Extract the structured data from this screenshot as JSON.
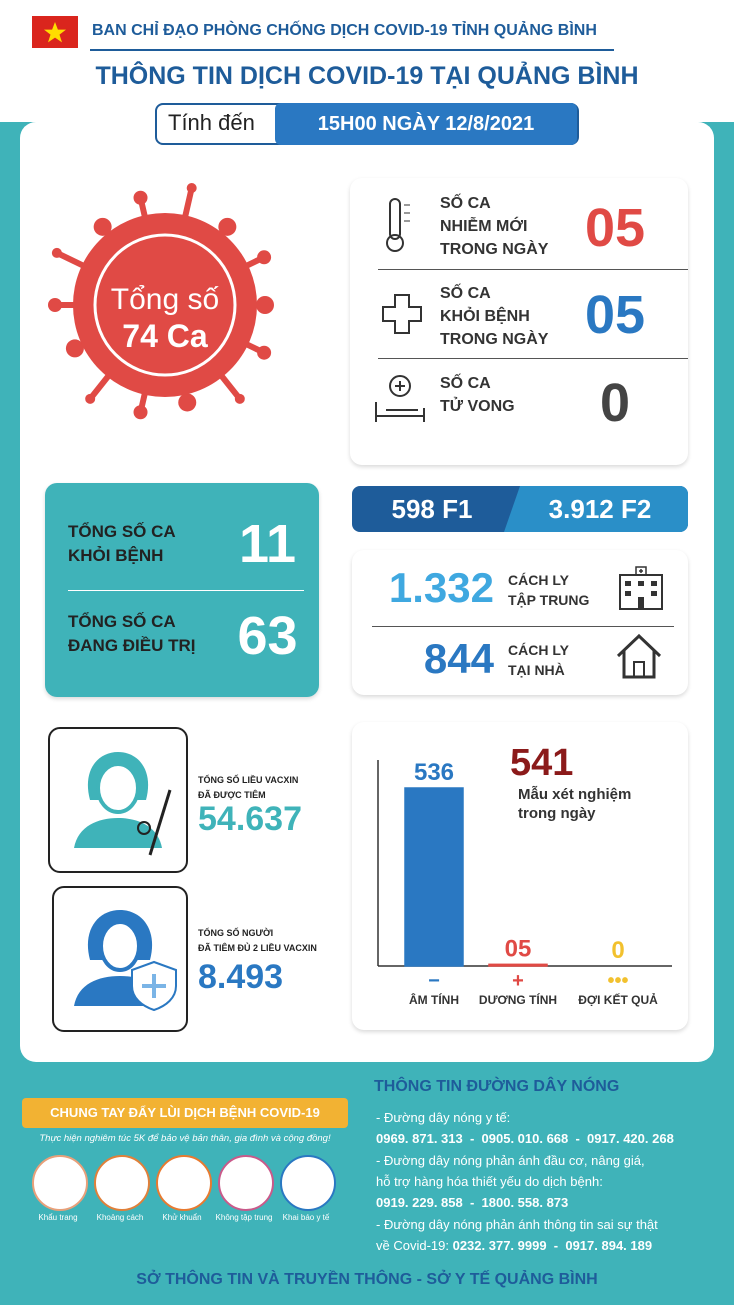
{
  "header": {
    "org": "BAN CHỈ ĐẠO PHÒNG CHỐNG DỊCH COVID-19 TỈNH QUẢNG BÌNH",
    "title": "THÔNG TIN DỊCH COVID-19 TẠI QUẢNG BÌNH",
    "as_of_label": "Tính đến",
    "as_of": "15H00 NGÀY 12/8/2021"
  },
  "total": {
    "line1": "Tổng số",
    "line2": "74 Ca"
  },
  "daily": [
    {
      "label_lines": [
        "SỐ CA",
        "NHIỄM MỚI",
        "TRONG NGÀY"
      ],
      "value": "05"
    },
    {
      "label_lines": [
        "SỐ CA",
        "KHỎI BỆNH",
        "TRONG NGÀY"
      ],
      "value": "05"
    },
    {
      "label_lines": [
        "SỐ CA",
        "TỬ VONG"
      ],
      "value": "0"
    }
  ],
  "summary": [
    {
      "label_lines": [
        "TỔNG SỐ CA",
        "KHỎI BỆNH"
      ],
      "value": "11"
    },
    {
      "label_lines": [
        "TỔNG SỐ CA",
        "ĐANG ĐIỀU TRỊ"
      ],
      "value": "63"
    }
  ],
  "contacts": {
    "f1": "598 F1",
    "f2": "3.912 F2"
  },
  "quarantine": [
    {
      "value": "1.332",
      "label_lines": [
        "CÁCH LY",
        "TẬP TRUNG"
      ]
    },
    {
      "value": "844",
      "label_lines": [
        "CÁCH LY",
        "TẠI NHÀ"
      ]
    }
  ],
  "vaccine": [
    {
      "label_lines": [
        "TỔNG SỐ LIỀU VACXIN",
        "ĐÃ ĐƯỢC TIÊM"
      ],
      "value": "54.637"
    },
    {
      "label_lines": [
        "TỔNG SỐ NGƯỜI",
        "ĐÃ TIÊM ĐỦ 2 LIỀU VACXIN"
      ],
      "value": "8.493"
    }
  ],
  "tests": {
    "total": "541",
    "caption_lines": [
      "Mẫu xét nghiệm",
      "trong ngày"
    ],
    "categories": [
      "ÂM TÍNH",
      "DƯƠNG TÍNH",
      "ĐỢI KẾT QUẢ"
    ],
    "symbols": [
      "−",
      "+",
      "•••"
    ],
    "values": [
      536,
      5,
      0
    ],
    "value_labels": [
      "536",
      "05",
      "0"
    ],
    "colors": [
      "#2a78c2",
      "#e04a45",
      "#f2c12e"
    ]
  },
  "campaign": {
    "title": "CHUNG TAY ĐẨY LÙI DỊCH BỆNH COVID-19",
    "subtitle": "Thực hiện nghiêm túc 5K để bảo vệ bản thân, gia đình và cộng đồng!",
    "icons": [
      "Khẩu trang",
      "Khoảng cách",
      "Khử khuẩn",
      "Không tập trung",
      "Khai báo y tế"
    ]
  },
  "hotline": {
    "title": "THÔNG TIN ĐƯỜNG DÂY NÓNG",
    "lines": [
      {
        "text": "- Đường dây nóng y tế:"
      },
      {
        "numbers": "0969. 871. 313  -  0905. 010. 668  -  0917. 420. 268"
      },
      {
        "text": "- Đường dây nóng phản ánh đầu cơ, nâng giá,"
      },
      {
        "text": "hỗ trợ hàng hóa thiết yếu do dịch bệnh:"
      },
      {
        "numbers": "0919. 229. 858  -  1800. 558. 873"
      },
      {
        "text": "- Đường dây nóng phản ánh thông tin sai sự thật"
      },
      {
        "text": "về Covid-19: ",
        "numbers": "0232. 377. 9999  -  0917. 894. 189"
      }
    ]
  },
  "footer": "SỞ THÔNG TIN VÀ TRUYỀN THÔNG - SỞ Y TẾ QUẢNG BÌNH"
}
